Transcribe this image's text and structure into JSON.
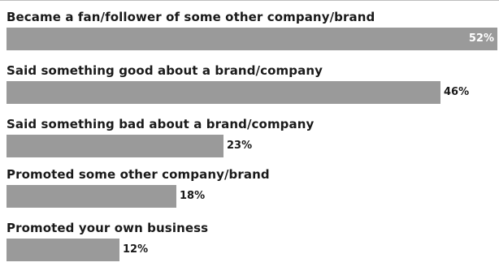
{
  "chart_data": {
    "type": "bar",
    "orientation": "horizontal",
    "categories": [
      "Became a fan/follower of some other company/brand",
      "Said something good about a brand/company",
      "Said something bad about a brand/company",
      "Promoted some other company/brand",
      "Promoted your own business"
    ],
    "values": [
      52,
      46,
      23,
      18,
      12
    ],
    "value_labels": [
      "52%",
      "46%",
      "23%",
      "18%",
      "12%"
    ],
    "xlim": [
      0,
      52
    ],
    "bar_color": "#9a9a9a",
    "value_label_color": "#1a1a1a",
    "value_label_color_inside": "#ffffff",
    "grid": false,
    "legend": "none"
  }
}
